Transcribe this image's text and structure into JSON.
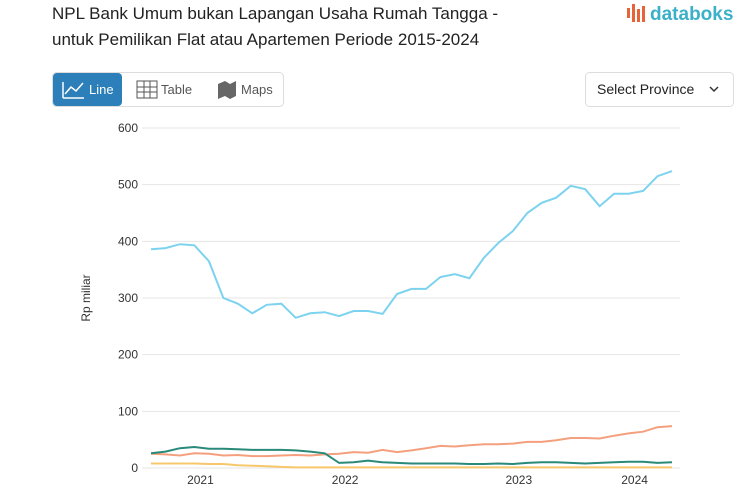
{
  "header": {
    "title": [
      "NPL Bank Umum bukan Lapangan Usaha Rumah Tangga -",
      "untuk Pemilikan Flat atau Apartemen Periode 2015-2024"
    ],
    "brand": "databoks"
  },
  "tabs": [
    "Line",
    "Table",
    "Maps"
  ],
  "select": "Select Province",
  "chart_data": {
    "type": "line",
    "y_label": "Rp miliar",
    "categories": [
      null,
      null,
      null,
      "2021",
      null,
      null,
      null,
      null,
      null,
      null,
      null,
      null,
      null,
      "2022",
      null,
      null,
      null,
      null,
      null,
      null,
      null,
      null,
      null,
      null,
      null,
      "2023",
      null,
      null,
      null,
      null,
      null,
      null,
      null,
      "2024",
      null,
      null,
      null
    ],
    "series": [
      {
        "color": "#7dd3ef",
        "values": [
          386,
          388,
          395,
          393,
          365,
          300,
          290,
          273,
          288,
          290,
          265,
          273,
          275,
          268,
          277,
          277,
          272,
          307,
          316,
          316,
          337,
          342,
          335,
          371,
          397,
          418,
          450,
          468,
          477,
          498,
          492,
          462,
          484,
          484,
          489,
          515,
          524
        ]
      },
      {
        "color": "#f4a07e",
        "values": [
          25,
          24,
          22,
          26,
          25,
          22,
          23,
          21,
          21,
          22,
          23,
          22,
          24,
          25,
          28,
          27,
          32,
          28,
          31,
          35,
          39,
          38,
          40,
          42,
          42,
          43,
          46,
          46,
          49,
          53,
          53,
          52,
          57,
          61,
          64,
          72,
          74
        ]
      },
      {
        "color": "#2a8a7a",
        "values": [
          26,
          29,
          35,
          37,
          34,
          34,
          33,
          32,
          32,
          32,
          31,
          29,
          26,
          9,
          10,
          13,
          10,
          9,
          8,
          8,
          8,
          8,
          7,
          7,
          8,
          7,
          9,
          10,
          10,
          9,
          8,
          9,
          10,
          11,
          11,
          9,
          10
        ]
      },
      {
        "color": "#f7c86b",
        "values": [
          8,
          8,
          8,
          8,
          7,
          7,
          5,
          4,
          3,
          2,
          1,
          1,
          1,
          1,
          1,
          1,
          1,
          1,
          1,
          1,
          1,
          1,
          1,
          1,
          1,
          1,
          1,
          1,
          1,
          1,
          1,
          1,
          1,
          1,
          1,
          1,
          1
        ]
      }
    ],
    "ylim": [
      0,
      600
    ],
    "yticks": [
      0,
      100,
      200,
      300,
      400,
      500,
      600
    ],
    "grid": true
  }
}
